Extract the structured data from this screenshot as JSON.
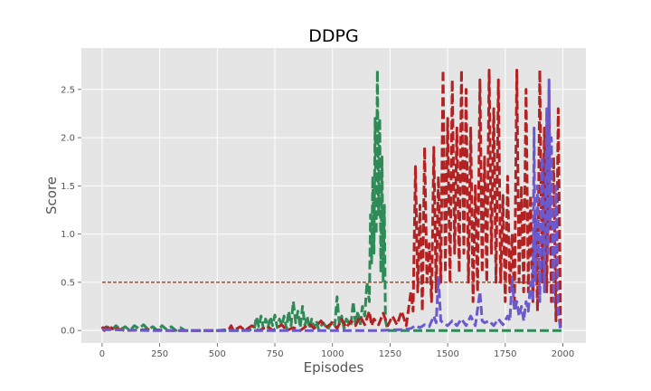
{
  "chart_data": {
    "type": "line",
    "title": "DDPG",
    "xlabel": "Episodes",
    "ylabel": "Score",
    "xlim": [
      -90,
      2100
    ],
    "ylim": [
      -0.13,
      2.93
    ],
    "xticks": [
      0,
      250,
      500,
      750,
      1000,
      1250,
      1500,
      1750,
      2000
    ],
    "yticks": [
      0.0,
      0.5,
      1.0,
      1.5,
      2.0,
      2.5
    ],
    "grid": true,
    "legend": "none",
    "reference_line": {
      "y": 0.5,
      "x": [
        0,
        2000
      ],
      "color": "#a0522d",
      "style": "dashed"
    },
    "series": [
      {
        "color": "#2e8b57",
        "points": [
          [
            0,
            0.01
          ],
          [
            20,
            0.04
          ],
          [
            40,
            0.0
          ],
          [
            60,
            0.05
          ],
          [
            80,
            0.01
          ],
          [
            100,
            0.04
          ],
          [
            120,
            0.0
          ],
          [
            140,
            0.05
          ],
          [
            160,
            0.02
          ],
          [
            180,
            0.06
          ],
          [
            200,
            0.01
          ],
          [
            220,
            0.04
          ],
          [
            240,
            0.0
          ],
          [
            260,
            0.05
          ],
          [
            280,
            0.01
          ],
          [
            300,
            0.04
          ],
          [
            320,
            0.0
          ],
          [
            340,
            0.03
          ],
          [
            360,
            0.0
          ],
          [
            400,
            0.0
          ],
          [
            500,
            0.0
          ],
          [
            600,
            0.0
          ],
          [
            660,
            0.01
          ],
          [
            670,
            0.14
          ],
          [
            680,
            0.04
          ],
          [
            690,
            0.15
          ],
          [
            700,
            0.02
          ],
          [
            710,
            0.12
          ],
          [
            720,
            0.03
          ],
          [
            730,
            0.14
          ],
          [
            740,
            0.05
          ],
          [
            750,
            0.16
          ],
          [
            760,
            0.03
          ],
          [
            770,
            0.12
          ],
          [
            780,
            0.05
          ],
          [
            790,
            0.15
          ],
          [
            800,
            0.02
          ],
          [
            810,
            0.2
          ],
          [
            820,
            0.05
          ],
          [
            830,
            0.3
          ],
          [
            840,
            0.08
          ],
          [
            850,
            0.2
          ],
          [
            860,
            0.03
          ],
          [
            870,
            0.25
          ],
          [
            880,
            0.05
          ],
          [
            890,
            0.15
          ],
          [
            900,
            0.02
          ],
          [
            910,
            0.12
          ],
          [
            920,
            0.03
          ],
          [
            930,
            0.1
          ],
          [
            940,
            0.01
          ],
          [
            960,
            0.08
          ],
          [
            980,
            0.01
          ],
          [
            1000,
            0.1
          ],
          [
            1010,
            0.05
          ],
          [
            1020,
            0.35
          ],
          [
            1030,
            0.05
          ],
          [
            1040,
            0.15
          ],
          [
            1050,
            0.02
          ],
          [
            1060,
            0.12
          ],
          [
            1080,
            0.05
          ],
          [
            1090,
            0.3
          ],
          [
            1100,
            0.06
          ],
          [
            1110,
            0.2
          ],
          [
            1120,
            0.05
          ],
          [
            1130,
            0.25
          ],
          [
            1140,
            0.15
          ],
          [
            1150,
            0.5
          ],
          [
            1160,
            0.3
          ],
          [
            1165,
            1.2
          ],
          [
            1170,
            0.7
          ],
          [
            1175,
            1.6
          ],
          [
            1180,
            0.8
          ],
          [
            1185,
            2.2
          ],
          [
            1190,
            1.0
          ],
          [
            1195,
            2.7
          ],
          [
            1200,
            1.2
          ],
          [
            1205,
            2.2
          ],
          [
            1210,
            0.6
          ],
          [
            1215,
            1.8
          ],
          [
            1220,
            0.5
          ],
          [
            1225,
            1.3
          ],
          [
            1230,
            0.1
          ],
          [
            1240,
            0.0
          ],
          [
            1400,
            0.0
          ],
          [
            1600,
            0.0
          ],
          [
            1800,
            0.0
          ],
          [
            2000,
            0.0
          ]
        ]
      },
      {
        "color": "#b22222",
        "points": [
          [
            0,
            0.04
          ],
          [
            10,
            0.0
          ],
          [
            20,
            0.06
          ],
          [
            30,
            0.01
          ],
          [
            40,
            0.03
          ],
          [
            50,
            0.0
          ],
          [
            60,
            0.02
          ],
          [
            100,
            0.0
          ],
          [
            200,
            0.01
          ],
          [
            300,
            0.0
          ],
          [
            400,
            0.0
          ],
          [
            500,
            0.0
          ],
          [
            550,
            0.01
          ],
          [
            560,
            0.05
          ],
          [
            570,
            0.0
          ],
          [
            600,
            0.04
          ],
          [
            620,
            0.0
          ],
          [
            650,
            0.05
          ],
          [
            680,
            0.0
          ],
          [
            720,
            0.04
          ],
          [
            740,
            0.0
          ],
          [
            780,
            0.06
          ],
          [
            800,
            0.0
          ],
          [
            830,
            0.03
          ],
          [
            860,
            0.0
          ],
          [
            900,
            0.07
          ],
          [
            920,
            0.02
          ],
          [
            950,
            0.1
          ],
          [
            970,
            0.03
          ],
          [
            1000,
            0.08
          ],
          [
            1020,
            0.02
          ],
          [
            1040,
            0.12
          ],
          [
            1060,
            0.03
          ],
          [
            1080,
            0.1
          ],
          [
            1100,
            0.05
          ],
          [
            1120,
            0.15
          ],
          [
            1140,
            0.06
          ],
          [
            1160,
            0.2
          ],
          [
            1170,
            0.05
          ],
          [
            1180,
            0.12
          ],
          [
            1200,
            0.06
          ],
          [
            1220,
            0.18
          ],
          [
            1240,
            0.05
          ],
          [
            1260,
            0.15
          ],
          [
            1280,
            0.06
          ],
          [
            1300,
            0.2
          ],
          [
            1320,
            0.05
          ],
          [
            1340,
            0.4
          ],
          [
            1350,
            0.2
          ],
          [
            1360,
            1.7
          ],
          [
            1370,
            0.4
          ],
          [
            1380,
            1.3
          ],
          [
            1390,
            0.2
          ],
          [
            1400,
            1.9
          ],
          [
            1410,
            0.5
          ],
          [
            1420,
            0.9
          ],
          [
            1430,
            0.3
          ],
          [
            1440,
            1.9
          ],
          [
            1450,
            0.4
          ],
          [
            1460,
            1.6
          ],
          [
            1470,
            0.5
          ],
          [
            1480,
            2.7
          ],
          [
            1490,
            0.6
          ],
          [
            1500,
            2.2
          ],
          [
            1510,
            0.5
          ],
          [
            1520,
            2.6
          ],
          [
            1530,
            0.8
          ],
          [
            1540,
            2.1
          ],
          [
            1550,
            0.6
          ],
          [
            1560,
            2.7
          ],
          [
            1570,
            0.8
          ],
          [
            1580,
            2.5
          ],
          [
            1590,
            0.5
          ],
          [
            1600,
            2.1
          ],
          [
            1610,
            0.3
          ],
          [
            1620,
            1.5
          ],
          [
            1630,
            0.4
          ],
          [
            1640,
            2.6
          ],
          [
            1650,
            0.6
          ],
          [
            1660,
            1.8
          ],
          [
            1670,
            0.5
          ],
          [
            1680,
            2.7
          ],
          [
            1690,
            0.8
          ],
          [
            1700,
            2.3
          ],
          [
            1710,
            0.5
          ],
          [
            1720,
            2.6
          ],
          [
            1730,
            0.5
          ],
          [
            1740,
            1.4
          ],
          [
            1750,
            0.3
          ],
          [
            1760,
            1.6
          ],
          [
            1770,
            0.4
          ],
          [
            1780,
            1.0
          ],
          [
            1790,
            0.3
          ],
          [
            1800,
            2.7
          ],
          [
            1810,
            0.5
          ],
          [
            1820,
            1.5
          ],
          [
            1830,
            0.4
          ],
          [
            1840,
            2.5
          ],
          [
            1850,
            0.4
          ],
          [
            1860,
            1.4
          ],
          [
            1870,
            0.3
          ],
          [
            1880,
            1.2
          ],
          [
            1890,
            0.2
          ],
          [
            1900,
            2.7
          ],
          [
            1910,
            0.5
          ],
          [
            1920,
            2.1
          ],
          [
            1930,
            0.4
          ],
          [
            1940,
            2.5
          ],
          [
            1950,
            0.3
          ],
          [
            1960,
            1.8
          ],
          [
            1970,
            0.1
          ],
          [
            1980,
            2.3
          ],
          [
            1990,
            0.0
          ]
        ]
      },
      {
        "color": "#6a5acd",
        "points": [
          [
            0,
            0.01
          ],
          [
            200,
            0.0
          ],
          [
            400,
            0.0
          ],
          [
            600,
            0.0
          ],
          [
            800,
            0.0
          ],
          [
            1000,
            0.0
          ],
          [
            1200,
            0.0
          ],
          [
            1300,
            0.01
          ],
          [
            1340,
            0.02
          ],
          [
            1360,
            0.05
          ],
          [
            1380,
            0.03
          ],
          [
            1400,
            0.06
          ],
          [
            1420,
            0.04
          ],
          [
            1440,
            0.15
          ],
          [
            1450,
            0.08
          ],
          [
            1460,
            0.55
          ],
          [
            1470,
            0.1
          ],
          [
            1480,
            0.08
          ],
          [
            1500,
            0.05
          ],
          [
            1520,
            0.1
          ],
          [
            1540,
            0.05
          ],
          [
            1560,
            0.12
          ],
          [
            1580,
            0.05
          ],
          [
            1600,
            0.15
          ],
          [
            1620,
            0.05
          ],
          [
            1640,
            0.4
          ],
          [
            1650,
            0.1
          ],
          [
            1660,
            0.08
          ],
          [
            1680,
            0.1
          ],
          [
            1700,
            0.05
          ],
          [
            1720,
            0.12
          ],
          [
            1740,
            0.06
          ],
          [
            1760,
            0.15
          ],
          [
            1770,
            0.1
          ],
          [
            1780,
            0.55
          ],
          [
            1790,
            0.2
          ],
          [
            1800,
            0.3
          ],
          [
            1810,
            0.15
          ],
          [
            1820,
            0.25
          ],
          [
            1830,
            0.1
          ],
          [
            1840,
            0.3
          ],
          [
            1850,
            0.2
          ],
          [
            1860,
            0.5
          ],
          [
            1870,
            0.3
          ],
          [
            1875,
            2.1
          ],
          [
            1880,
            0.5
          ],
          [
            1890,
            1.5
          ],
          [
            1900,
            0.3
          ],
          [
            1910,
            1.8
          ],
          [
            1920,
            0.4
          ],
          [
            1930,
            2.3
          ],
          [
            1935,
            0.8
          ],
          [
            1940,
            2.6
          ],
          [
            1945,
            1.1
          ],
          [
            1950,
            2.0
          ],
          [
            1960,
            0.3
          ],
          [
            1970,
            1.5
          ],
          [
            1980,
            0.2
          ],
          [
            1990,
            0.0
          ]
        ]
      }
    ]
  }
}
